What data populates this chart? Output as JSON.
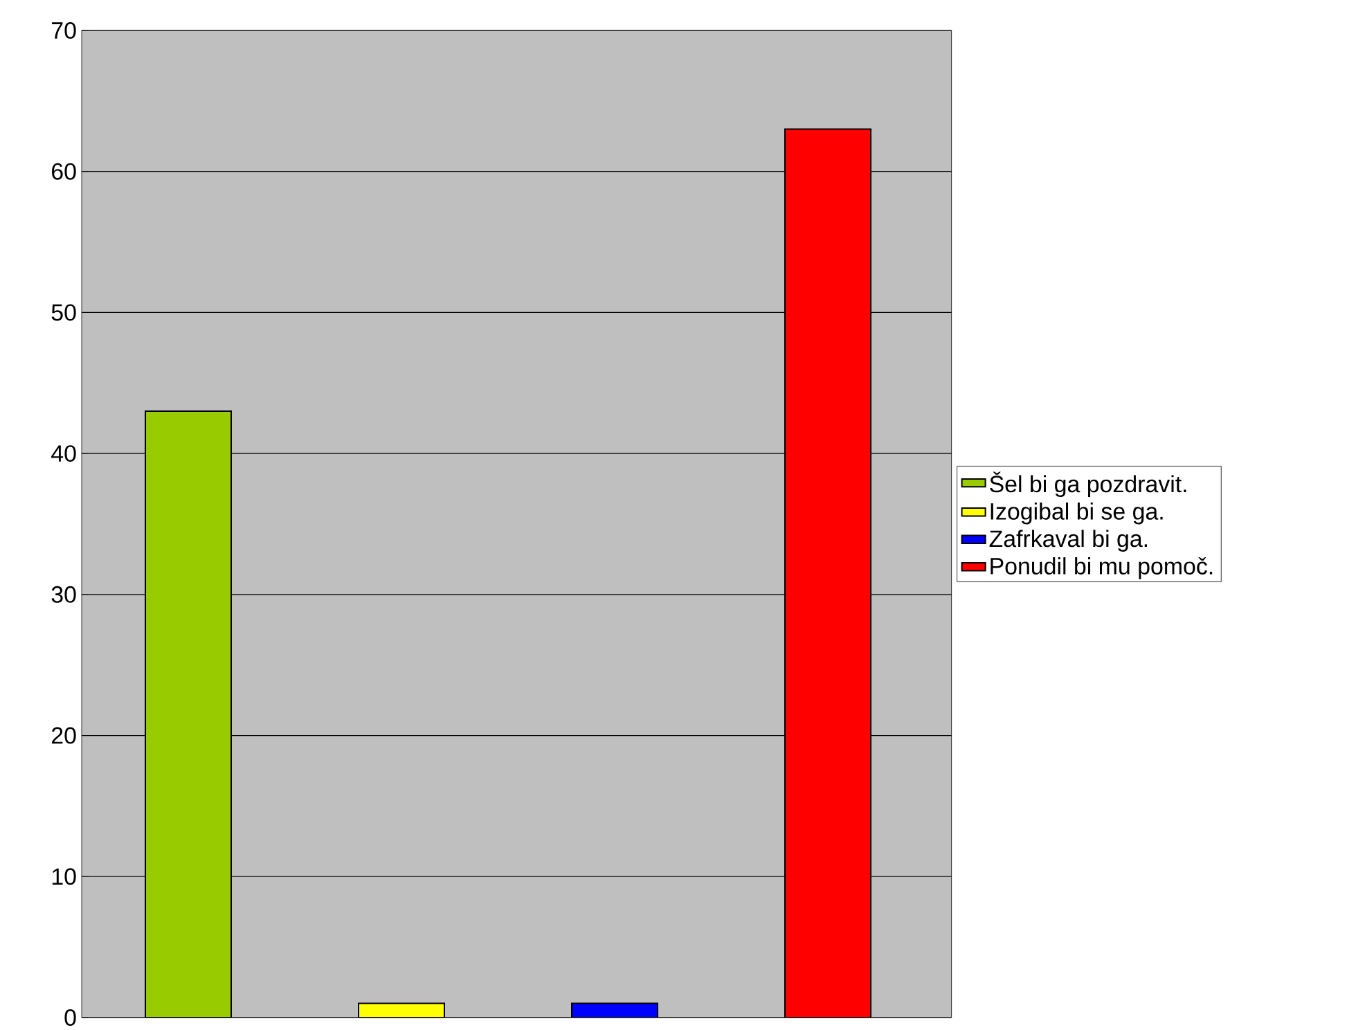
{
  "chart_data": {
    "type": "bar",
    "categories": [
      null
    ],
    "series": [
      {
        "name": "Šel bi ga pozdravit.",
        "color": "#99cc00",
        "values": [
          43
        ]
      },
      {
        "name": "Izogibal bi se ga.",
        "color": "#ffff00",
        "values": [
          1
        ]
      },
      {
        "name": "Zafrkaval bi ga.",
        "color": "#0000ff",
        "values": [
          1
        ]
      },
      {
        "name": "Ponudil bi mu pomoč.",
        "color": "#ff0000",
        "values": [
          63
        ]
      }
    ],
    "ylim": [
      0,
      70
    ],
    "yticks": [
      0,
      10,
      20,
      30,
      40,
      50,
      60,
      70
    ],
    "grid": "y",
    "legend": "right",
    "tick_labels": "y"
  }
}
